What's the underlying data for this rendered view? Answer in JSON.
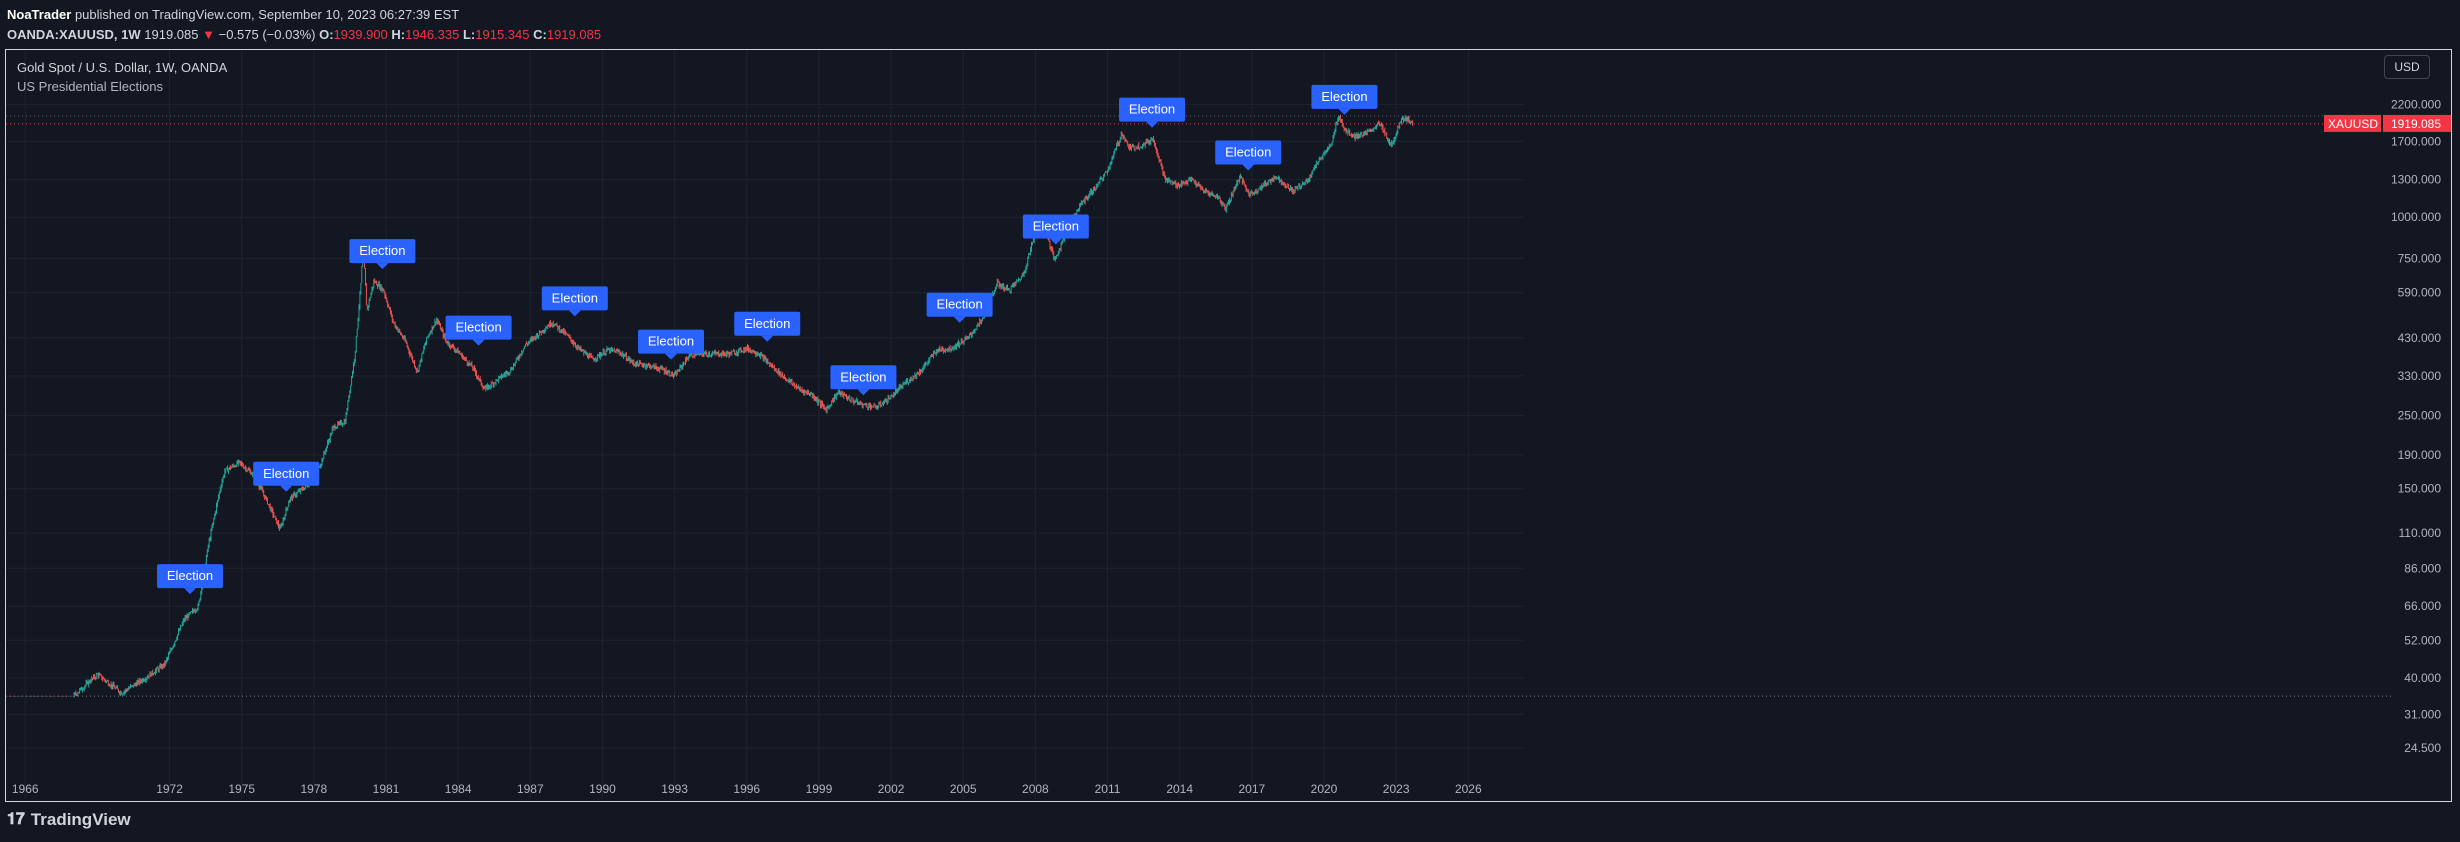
{
  "header": {
    "author": "NoaTrader",
    "published_text": "published on TradingView.com, September 10, 2023 06:27:39 EST",
    "symbol": "OANDA:XAUUSD, 1W",
    "last": "1919.085",
    "change": "−0.575 (−0.03%)",
    "ohlc": [
      {
        "k": "O:",
        "v": "1939.900"
      },
      {
        "k": "H:",
        "v": "1946.335"
      },
      {
        "k": "L:",
        "v": "1915.345"
      },
      {
        "k": "C:",
        "v": "1919.085"
      }
    ]
  },
  "legend": {
    "title": "Gold Spot / U.S. Dollar, 1W, OANDA",
    "indicator": "US Presidential Elections"
  },
  "currency_button": "USD",
  "footer": {
    "brand": "TradingView"
  },
  "colors": {
    "background": "#131722",
    "grid": "#1f2330",
    "up": "#26a69a",
    "down": "#ef5350",
    "label_bg": "#2962ff",
    "price_tag": "#f23645"
  },
  "chart_data": {
    "type": "candlestick",
    "scale": "log",
    "ylim": [
      24.5,
      3000
    ],
    "xlim": [
      1965.2,
      2027.9
    ],
    "x_ticks": [
      "1966",
      "1972",
      "1975",
      "1978",
      "1981",
      "1984",
      "1987",
      "1990",
      "1993",
      "1996",
      "1999",
      "2002",
      "2005",
      "2008",
      "2011",
      "2014",
      "2017",
      "2020",
      "2023",
      "2026"
    ],
    "y_ticks": [
      "2200.000",
      "1700.000",
      "1300.000",
      "1000.000",
      "750.000",
      "590.000",
      "430.000",
      "330.000",
      "250.000",
      "190.000",
      "150.000",
      "110.000",
      "86.000",
      "66.000",
      "52.000",
      "40.000",
      "31.000",
      "24.500"
    ],
    "series": [
      {
        "points": [
          [
            1965.3,
            35.2
          ],
          [
            1968.0,
            35.2
          ],
          [
            1969.0,
            41
          ],
          [
            1970.0,
            36
          ],
          [
            1971.0,
            40
          ],
          [
            1971.8,
            44
          ],
          [
            1972.6,
            60
          ],
          [
            1973.2,
            66
          ],
          [
            1973.6,
            100
          ],
          [
            1974.1,
            150
          ],
          [
            1974.3,
            170
          ],
          [
            1974.9,
            180
          ],
          [
            1975.5,
            165
          ],
          [
            1976.0,
            140
          ],
          [
            1976.6,
            113
          ],
          [
            1977.0,
            140
          ],
          [
            1977.8,
            155
          ],
          [
            1978.3,
            180
          ],
          [
            1978.8,
            230
          ],
          [
            1979.3,
            240
          ],
          [
            1979.7,
            380
          ],
          [
            1979.95,
            620
          ],
          [
            1980.05,
            830
          ],
          [
            1980.2,
            520
          ],
          [
            1980.5,
            640
          ],
          [
            1980.9,
            600
          ],
          [
            1981.3,
            480
          ],
          [
            1981.8,
            420
          ],
          [
            1982.3,
            340
          ],
          [
            1982.7,
            430
          ],
          [
            1983.1,
            490
          ],
          [
            1983.5,
            420
          ],
          [
            1984.0,
            390
          ],
          [
            1984.6,
            350
          ],
          [
            1985.1,
            300
          ],
          [
            1985.6,
            320
          ],
          [
            1986.2,
            345
          ],
          [
            1986.8,
            410
          ],
          [
            1987.3,
            440
          ],
          [
            1987.9,
            480
          ],
          [
            1988.5,
            440
          ],
          [
            1989.0,
            400
          ],
          [
            1989.6,
            370
          ],
          [
            1990.2,
            395
          ],
          [
            1990.7,
            390
          ],
          [
            1991.3,
            360
          ],
          [
            1991.9,
            355
          ],
          [
            1992.5,
            345
          ],
          [
            1993.0,
            330
          ],
          [
            1993.6,
            380
          ],
          [
            1994.0,
            385
          ],
          [
            1994.6,
            385
          ],
          [
            1995.3,
            385
          ],
          [
            1996.0,
            400
          ],
          [
            1996.5,
            385
          ],
          [
            1997.0,
            355
          ],
          [
            1997.6,
            325
          ],
          [
            1998.2,
            300
          ],
          [
            1998.7,
            290
          ],
          [
            1999.3,
            260
          ],
          [
            1999.8,
            295
          ],
          [
            2000.3,
            280
          ],
          [
            2000.8,
            270
          ],
          [
            2001.4,
            265
          ],
          [
            2002.0,
            285
          ],
          [
            2002.6,
            315
          ],
          [
            2003.2,
            340
          ],
          [
            2003.9,
            395
          ],
          [
            2004.5,
            400
          ],
          [
            2005.2,
            430
          ],
          [
            2005.8,
            490
          ],
          [
            2006.4,
            630
          ],
          [
            2006.9,
            600
          ],
          [
            2007.5,
            670
          ],
          [
            2008.0,
            900
          ],
          [
            2008.3,
            980
          ],
          [
            2008.8,
            740
          ],
          [
            2009.3,
            910
          ],
          [
            2009.9,
            1100
          ],
          [
            2010.5,
            1230
          ],
          [
            2011.0,
            1390
          ],
          [
            2011.6,
            1800
          ],
          [
            2011.9,
            1620
          ],
          [
            2012.4,
            1650
          ],
          [
            2012.9,
            1730
          ],
          [
            2013.4,
            1300
          ],
          [
            2013.9,
            1250
          ],
          [
            2014.5,
            1300
          ],
          [
            2015.0,
            1200
          ],
          [
            2015.6,
            1150
          ],
          [
            2015.9,
            1060
          ],
          [
            2016.5,
            1330
          ],
          [
            2016.9,
            1170
          ],
          [
            2017.5,
            1250
          ],
          [
            2018.0,
            1330
          ],
          [
            2018.7,
            1200
          ],
          [
            2019.3,
            1290
          ],
          [
            2019.8,
            1500
          ],
          [
            2020.3,
            1650
          ],
          [
            2020.6,
            2040
          ],
          [
            2020.9,
            1830
          ],
          [
            2021.3,
            1760
          ],
          [
            2021.8,
            1800
          ],
          [
            2022.3,
            1930
          ],
          [
            2022.8,
            1640
          ],
          [
            2023.2,
            1980
          ],
          [
            2023.4,
            2000
          ],
          [
            2023.6,
            1940
          ],
          [
            2023.69,
            1919
          ]
        ]
      }
    ],
    "annotations": [
      {
        "label": "Election",
        "x": 1972.85,
        "y": 66
      },
      {
        "label": "Election",
        "x": 1976.85,
        "y": 135
      },
      {
        "label": "Election",
        "x": 1980.85,
        "y": 640
      },
      {
        "label": "Election",
        "x": 1984.85,
        "y": 375
      },
      {
        "label": "Election",
        "x": 1988.85,
        "y": 460
      },
      {
        "label": "Election",
        "x": 1992.85,
        "y": 340
      },
      {
        "label": "Election",
        "x": 1996.85,
        "y": 385
      },
      {
        "label": "Election",
        "x": 2000.85,
        "y": 265
      },
      {
        "label": "Election",
        "x": 2004.85,
        "y": 440
      },
      {
        "label": "Election",
        "x": 2008.85,
        "y": 760
      },
      {
        "label": "Election",
        "x": 2012.85,
        "y": 1720
      },
      {
        "label": "Election",
        "x": 2016.85,
        "y": 1275
      },
      {
        "label": "Election",
        "x": 2020.85,
        "y": 1880
      }
    ],
    "price_line": {
      "symbol": "XAUUSD",
      "value": 1919.085,
      "label": "1919.085"
    },
    "reference_line": 35.2
  }
}
